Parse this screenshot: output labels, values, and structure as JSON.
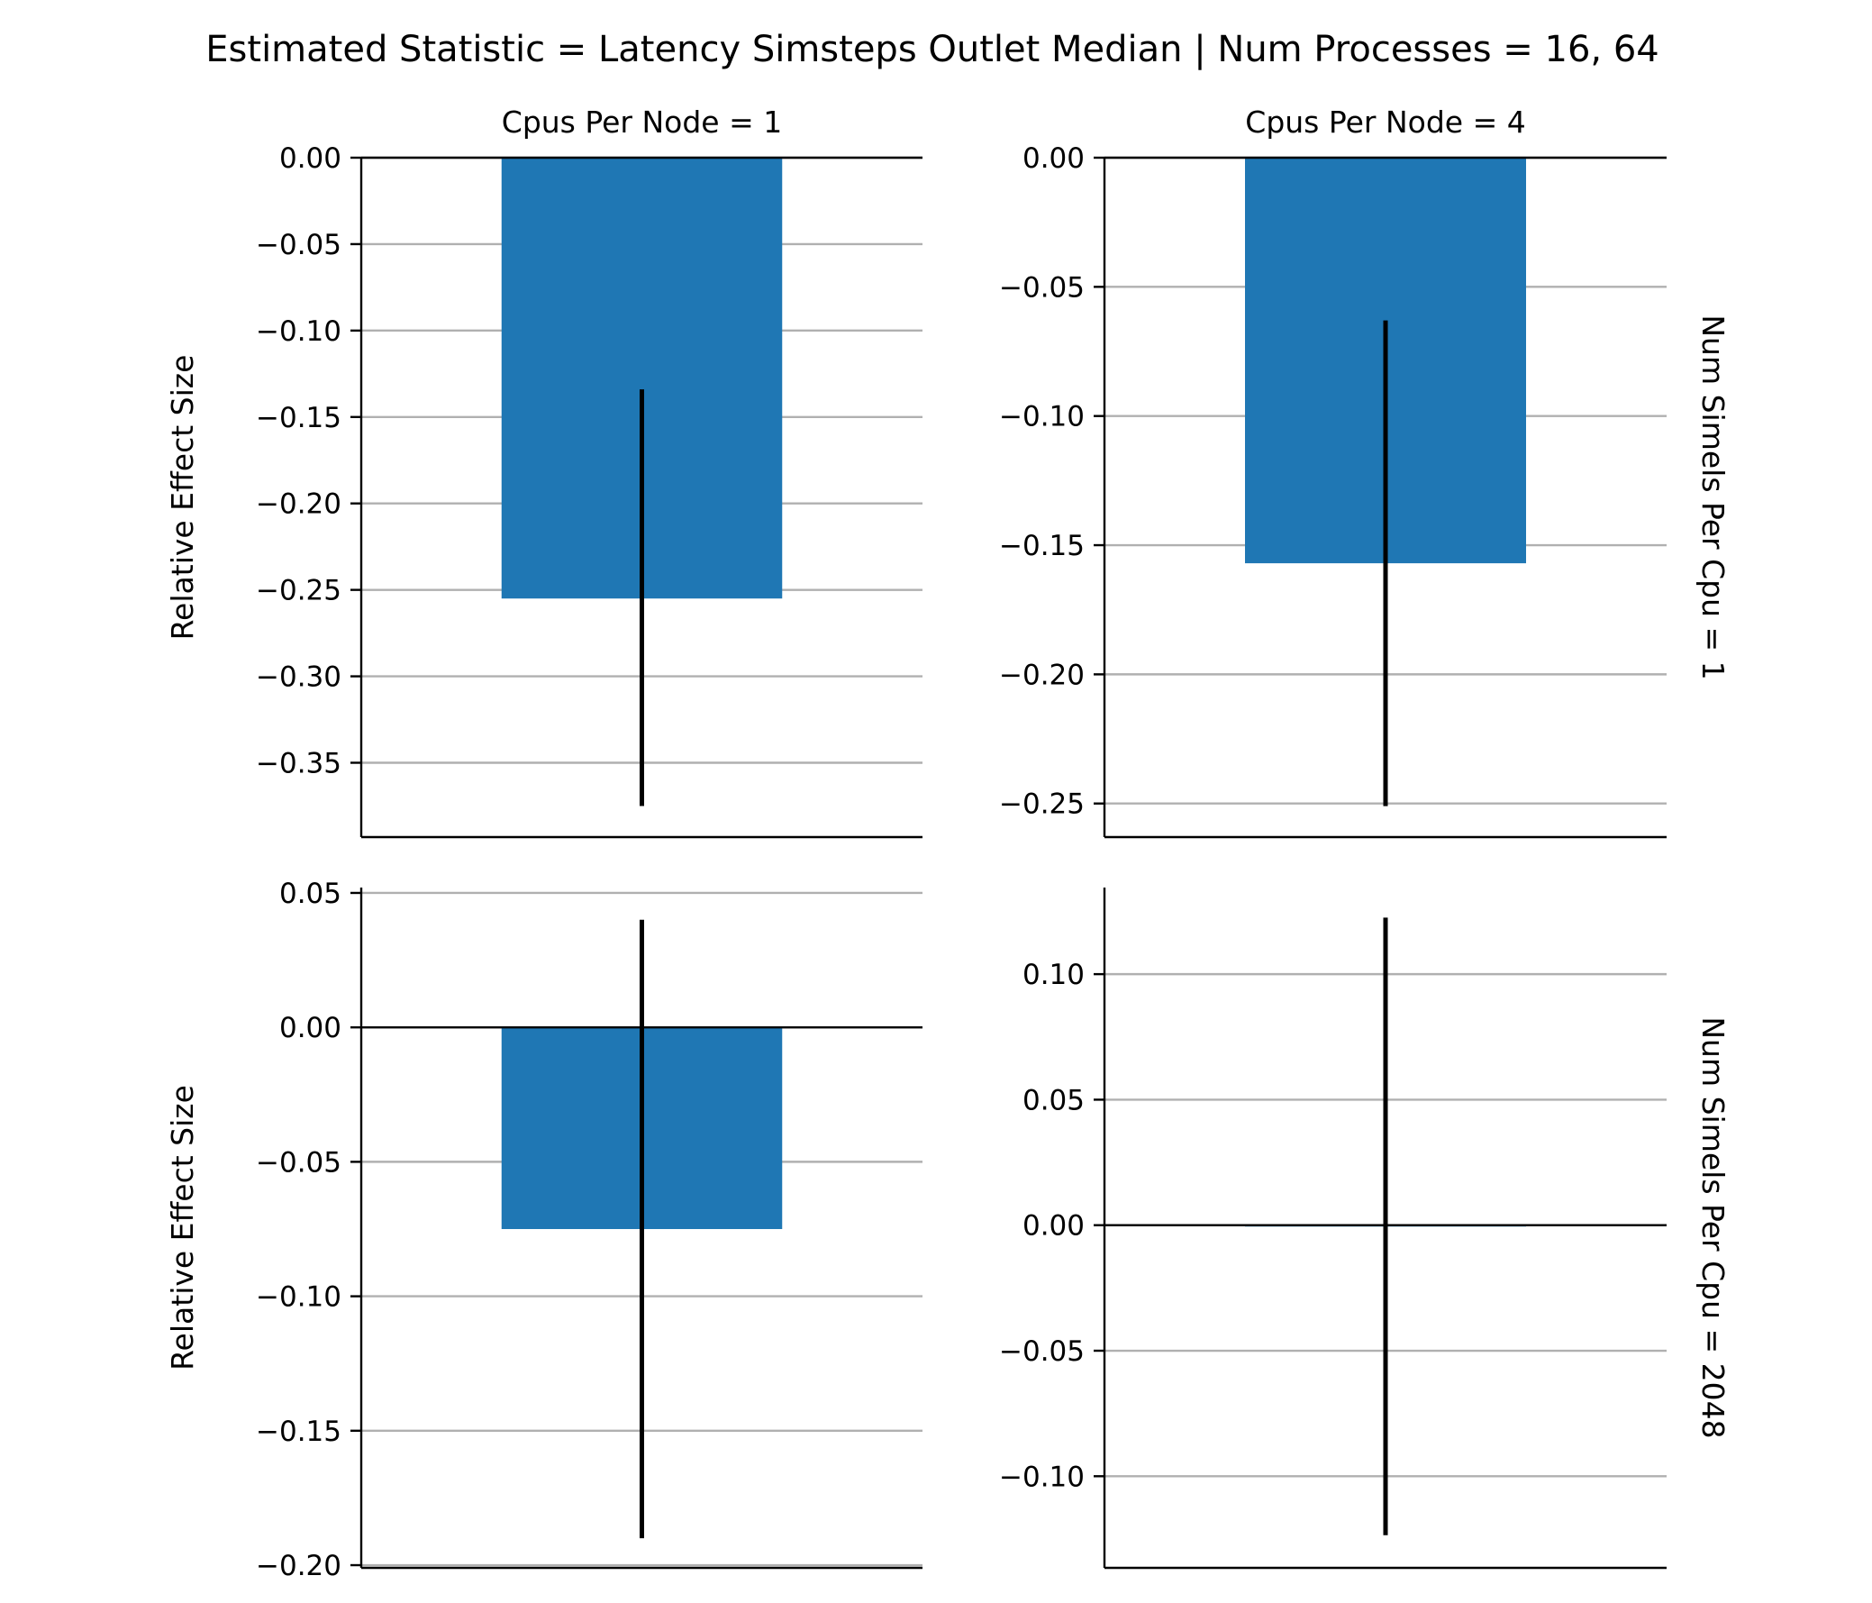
{
  "title": "Estimated Statistic = Latency Simsteps Outlet Median | Num Processes = 16, 64",
  "colors": {
    "bar": "#1f77b4",
    "errorbar": "#000000",
    "grid": "#b0b0b0"
  },
  "chart_data": [
    {
      "type": "bar",
      "col_title": "Cpus Per Node = 1",
      "row_title": "",
      "ylabel": "Relative Effect Size",
      "value": -0.255,
      "ci": [
        -0.375,
        -0.134
      ],
      "ylim": [
        -0.393,
        0.0
      ],
      "yticks": [
        0.0,
        -0.05,
        -0.1,
        -0.15,
        -0.2,
        -0.25,
        -0.3,
        -0.35
      ],
      "ytick_labels": [
        "0.00",
        "−0.05",
        "−0.10",
        "−0.15",
        "−0.20",
        "−0.25",
        "−0.30",
        "−0.35"
      ],
      "grid": true
    },
    {
      "type": "bar",
      "col_title": "Cpus Per Node = 4",
      "row_title": "Num Simels Per Cpu = 1",
      "ylabel": "",
      "value": -0.157,
      "ci": [
        -0.251,
        -0.063
      ],
      "ylim": [
        -0.263,
        0.0
      ],
      "yticks": [
        0.0,
        -0.05,
        -0.1,
        -0.15,
        -0.2,
        -0.25
      ],
      "ytick_labels": [
        "0.00",
        "−0.05",
        "−0.10",
        "−0.15",
        "−0.20",
        "−0.25"
      ],
      "grid": true
    },
    {
      "type": "bar",
      "col_title": "",
      "row_title": "",
      "ylabel": "Relative Effect Size",
      "value": -0.075,
      "ci": [
        -0.19,
        0.04
      ],
      "ylim": [
        -0.201,
        0.052
      ],
      "yticks": [
        0.05,
        0.0,
        -0.05,
        -0.1,
        -0.15,
        -0.2
      ],
      "ytick_labels": [
        "0.05",
        "0.00",
        "−0.05",
        "−0.10",
        "−0.15",
        "−0.20"
      ],
      "grid": true
    },
    {
      "type": "bar",
      "col_title": "",
      "row_title": "Num Simels Per Cpu = 2048",
      "ylabel": "",
      "value": -0.0005,
      "ci": [
        -0.1235,
        0.1225
      ],
      "ylim": [
        -0.1365,
        0.1345
      ],
      "yticks": [
        0.1,
        0.05,
        0.0,
        -0.05,
        -0.1
      ],
      "ytick_labels": [
        "0.10",
        "0.05",
        "0.00",
        "−0.05",
        "−0.10"
      ],
      "grid": true
    }
  ]
}
